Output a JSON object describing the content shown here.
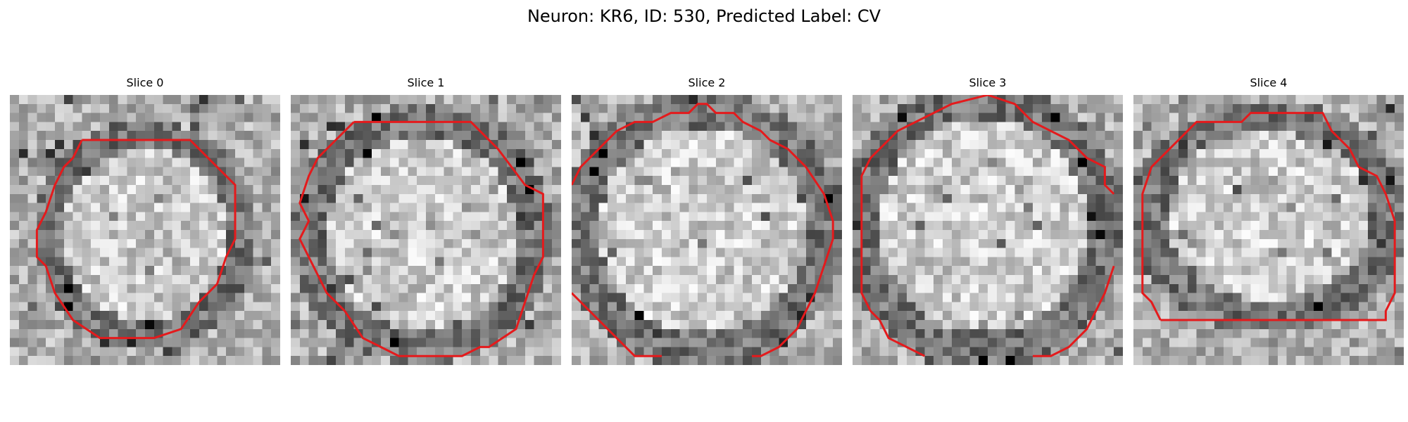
{
  "figure": {
    "title": "Neuron: KR6, ID: 530, Predicted Label: CV"
  },
  "colors": {
    "contour": "#e41a1c",
    "image_colormap": "grayscale"
  },
  "panels": [
    {
      "label": "Slice 0"
    },
    {
      "label": "Slice 1"
    },
    {
      "label": "Slice 2"
    },
    {
      "label": "Slice 3"
    },
    {
      "label": "Slice 4"
    }
  ]
}
